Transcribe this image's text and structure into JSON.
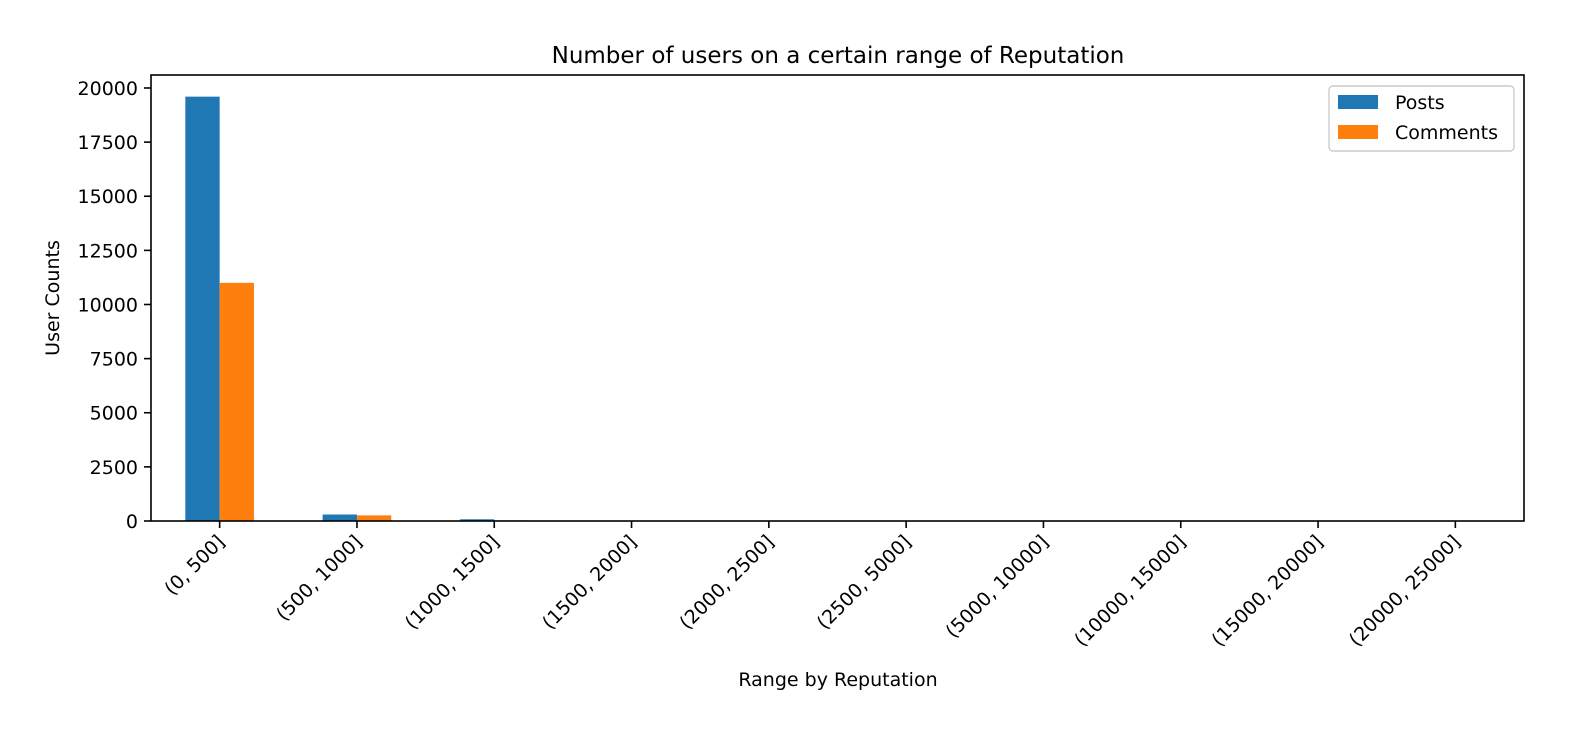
{
  "chart_data": {
    "type": "bar",
    "title": "Number of users on a certain range of Reputation",
    "xlabel": "Range by Reputation",
    "ylabel": "User Counts",
    "categories": [
      "(0, 500]",
      "(500, 1000]",
      "(1000, 1500]",
      "(1500, 2000]",
      "(2000, 2500]",
      "(2500, 5000]",
      "(5000, 10000]",
      "(10000, 15000]",
      "(15000, 20000]",
      "(20000, 25000]"
    ],
    "series": [
      {
        "name": "Posts",
        "color": "#1f77b4",
        "values": [
          19600,
          300,
          80,
          20,
          10,
          10,
          5,
          2,
          1,
          1
        ]
      },
      {
        "name": "Comments",
        "color": "#ff7f0e",
        "values": [
          11000,
          260,
          30,
          10,
          5,
          5,
          3,
          1,
          1,
          0
        ]
      }
    ],
    "ylim": [
      0,
      20600
    ],
    "yticks": [
      0,
      2500,
      5000,
      7500,
      10000,
      12500,
      15000,
      17500,
      20000
    ],
    "legend_position": "top-right",
    "grid": false
  }
}
